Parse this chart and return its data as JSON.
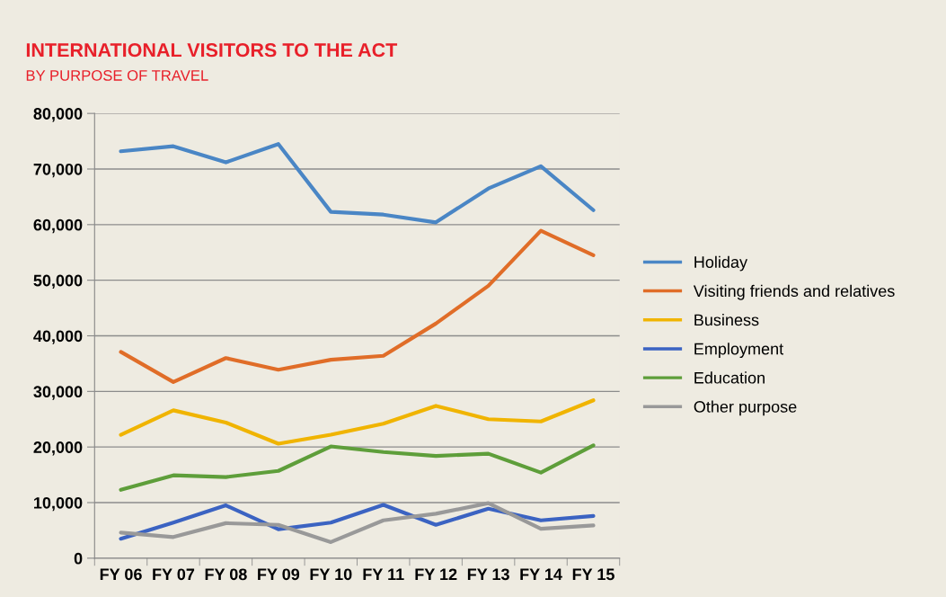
{
  "chart_data": {
    "type": "line",
    "title": "INTERNATIONAL VISITORS TO THE ACT",
    "subtitle": "BY PURPOSE OF TRAVEL",
    "categories": [
      "FY 06",
      "FY 07",
      "FY 08",
      "FY 09",
      "FY 10",
      "FY 11",
      "FY 12",
      "FY 13",
      "FY 14",
      "FY 15"
    ],
    "ylim": [
      0,
      80000
    ],
    "yticks": [
      {
        "value": 0,
        "label": "0"
      },
      {
        "value": 10000,
        "label": "10,000"
      },
      {
        "value": 20000,
        "label": "20,000"
      },
      {
        "value": 30000,
        "label": "30,000"
      },
      {
        "value": 40000,
        "label": "40,000"
      },
      {
        "value": 50000,
        "label": "50,000"
      },
      {
        "value": 60000,
        "label": "60,000"
      },
      {
        "value": 70000,
        "label": "70,000"
      },
      {
        "value": 80000,
        "label": "80,000"
      }
    ],
    "grid": "y",
    "legend": "right",
    "marker": "none",
    "line_style": "solid",
    "series": [
      {
        "name": "Holiday",
        "color": "#4a86c5",
        "values": [
          73200,
          74100,
          71200,
          74500,
          62300,
          61800,
          60400,
          66500,
          70500,
          62600
        ]
      },
      {
        "name": "Visiting friends and relatives",
        "color": "#e06d28",
        "values": [
          37100,
          31700,
          36000,
          33900,
          35700,
          36400,
          42200,
          49000,
          58900,
          54500
        ]
      },
      {
        "name": "Business",
        "color": "#f0b400",
        "values": [
          22200,
          26600,
          24400,
          20600,
          22200,
          24200,
          27400,
          25000,
          24600,
          28400
        ]
      },
      {
        "name": "Employment",
        "color": "#3b63c2",
        "values": [
          3500,
          6400,
          9500,
          5200,
          6400,
          9600,
          6000,
          8900,
          6800,
          7600
        ]
      },
      {
        "name": "Education",
        "color": "#5e9e3a",
        "values": [
          12300,
          14900,
          14600,
          15700,
          20100,
          19100,
          18400,
          18800,
          15400,
          20300
        ]
      },
      {
        "name": "Other purpose",
        "color": "#999999",
        "values": [
          4600,
          3800,
          6300,
          6000,
          2900,
          6800,
          8000,
          9900,
          5300,
          5900
        ]
      }
    ]
  }
}
